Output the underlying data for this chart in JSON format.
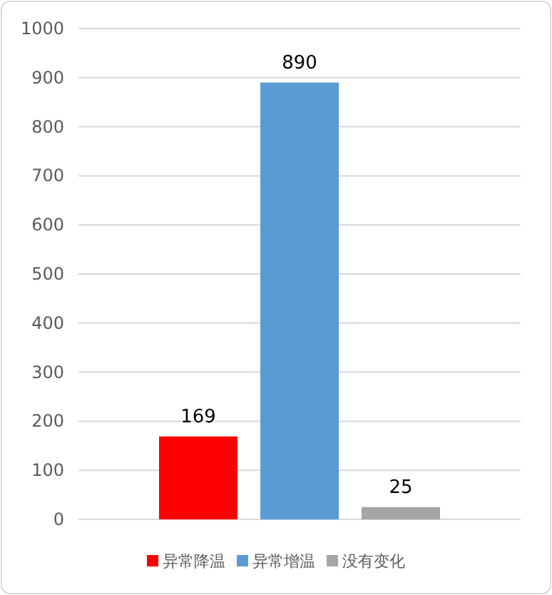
{
  "chart_data": {
    "type": "bar",
    "categories": [
      null
    ],
    "series": [
      {
        "name": "异常降温",
        "color": "#ff0000",
        "values": [
          169
        ]
      },
      {
        "name": "异常增温",
        "color": "#5b9bd5",
        "values": [
          890
        ]
      },
      {
        "name": "没有变化",
        "color": "#a5a5a5",
        "values": [
          25
        ]
      }
    ],
    "ylim": [
      0,
      1000
    ],
    "yticks": [
      0,
      100,
      200,
      300,
      400,
      500,
      600,
      700,
      800,
      900,
      1000
    ],
    "grid": "y",
    "legend": "bottom",
    "data_labels": true
  }
}
